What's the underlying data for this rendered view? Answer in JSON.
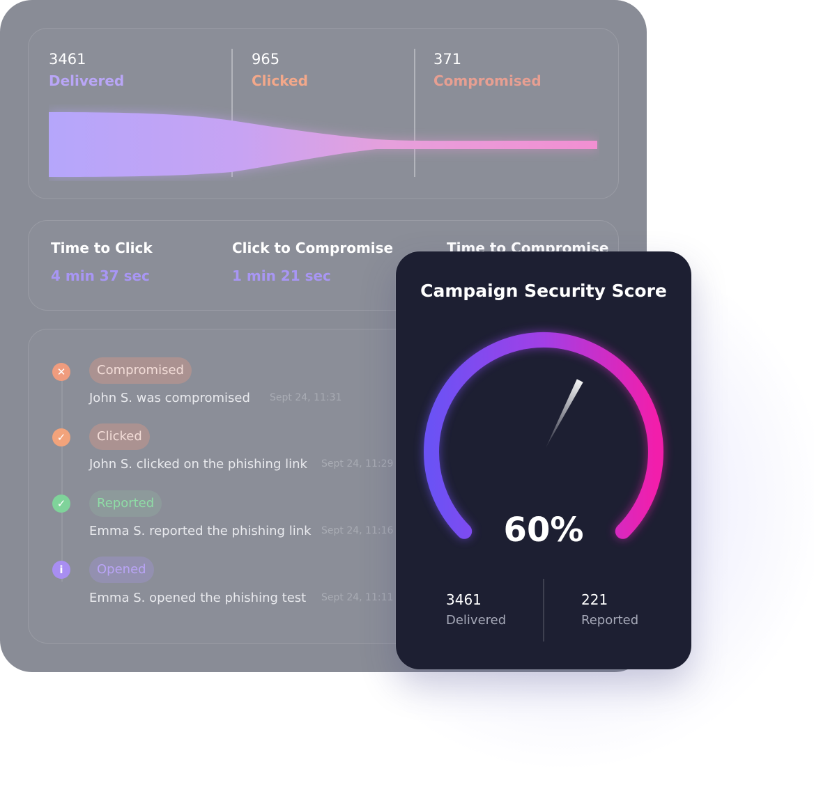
{
  "funnel": {
    "stages": [
      {
        "value": "3461",
        "label": "Delivered",
        "color": "#b9a6f7"
      },
      {
        "value": "965",
        "label": "Clicked",
        "color": "#f3a88a"
      },
      {
        "value": "371",
        "label": "Compromised",
        "color": "#e79f92"
      }
    ]
  },
  "times": [
    {
      "title": "Time to Click",
      "value": "4 min 37 sec"
    },
    {
      "title": "Click to Compromise",
      "value": "1 min 21 sec"
    },
    {
      "title": "Time to Compromise",
      "value": ""
    }
  ],
  "events": [
    {
      "icon": "x-circle-icon",
      "badge": "Compromised",
      "text": "John S. was compromised",
      "time": "Sept 24, 11:31",
      "color": "#ef9c7e"
    },
    {
      "icon": "check-circle-icon",
      "badge": "Clicked",
      "text": "John S. clicked on the phishing link",
      "time": "Sept 24, 11:29",
      "color": "#f2a37b"
    },
    {
      "icon": "check-circle-icon",
      "badge": "Reported",
      "text": "Emma S. reported the phishing link",
      "time": "Sept 24, 11:16",
      "color": "#7fd39a"
    },
    {
      "icon": "info-circle-icon",
      "badge": "Opened",
      "text": "Emma S. opened the phishing test",
      "time": "Sept 24, 11:11",
      "color": "#a88ef2"
    }
  ],
  "score_card": {
    "title": "Campaign Security Score",
    "score": "60%",
    "score_fraction": 0.6,
    "gauge_colors": [
      "#6b52f5",
      "#a23fe6",
      "#f21eab"
    ],
    "stats": [
      {
        "value": "3461",
        "label": "Delivered"
      },
      {
        "value": "221",
        "label": "Reported"
      }
    ]
  }
}
